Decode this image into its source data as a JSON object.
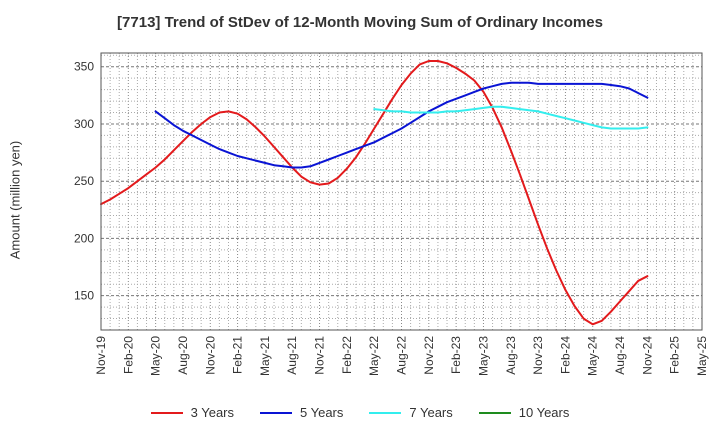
{
  "chart_data": {
    "type": "line",
    "title": "[7713]  Trend of StDev of 12-Month Moving Sum of Ordinary Incomes",
    "xlabel": "",
    "ylabel": "Amount (million yen)",
    "ylim": [
      120,
      362
    ],
    "yticks": [
      150,
      200,
      250,
      300,
      350
    ],
    "grid": true,
    "legend_position": "bottom",
    "x_ticks": [
      "Nov-19",
      "Feb-20",
      "May-20",
      "Aug-20",
      "Nov-20",
      "Feb-21",
      "May-21",
      "Aug-21",
      "Nov-21",
      "Feb-22",
      "May-22",
      "Aug-22",
      "Nov-22",
      "Feb-23",
      "May-23",
      "Aug-23",
      "Nov-23",
      "Feb-24",
      "May-24",
      "Aug-24",
      "Nov-24",
      "Feb-25",
      "May-25"
    ],
    "series": [
      {
        "name": "3 Years",
        "color": "#e31a1c",
        "x": [
          "Nov-19",
          "Dec-19",
          "Jan-20",
          "Feb-20",
          "Mar-20",
          "Apr-20",
          "May-20",
          "Jun-20",
          "Jul-20",
          "Aug-20",
          "Sep-20",
          "Oct-20",
          "Nov-20",
          "Dec-20",
          "Jan-21",
          "Feb-21",
          "Mar-21",
          "Apr-21",
          "May-21",
          "Jun-21",
          "Jul-21",
          "Aug-21",
          "Sep-21",
          "Oct-21",
          "Nov-21",
          "Dec-21",
          "Jan-22",
          "Feb-22",
          "Mar-22",
          "Apr-22",
          "May-22",
          "Jun-22",
          "Jul-22",
          "Aug-22",
          "Sep-22",
          "Oct-22",
          "Nov-22",
          "Dec-22",
          "Jan-23",
          "Feb-23",
          "Mar-23",
          "Apr-23",
          "May-23",
          "Jun-23",
          "Jul-23",
          "Aug-23",
          "Sep-23",
          "Oct-23",
          "Nov-23",
          "Dec-23",
          "Jan-24",
          "Feb-24",
          "Mar-24",
          "Apr-24",
          "May-24",
          "Jun-24",
          "Jul-24",
          "Aug-24",
          "Sep-24",
          "Oct-24",
          "Nov-24"
        ],
        "values": [
          230,
          234,
          239,
          244,
          250,
          256,
          262,
          269,
          277,
          285,
          293,
          300,
          306,
          310,
          311,
          309,
          304,
          297,
          289,
          280,
          271,
          262,
          254,
          249,
          247,
          248,
          253,
          261,
          271,
          283,
          296,
          309,
          322,
          334,
          344,
          352,
          355,
          355,
          353,
          349,
          344,
          338,
          328,
          314,
          297,
          277,
          256,
          234,
          212,
          191,
          172,
          155,
          141,
          130,
          125,
          128,
          136,
          145,
          154,
          163,
          167
        ]
      },
      {
        "name": "5 Years",
        "color": "#0a14d4",
        "x": [
          "May-20",
          "Jun-20",
          "Jul-20",
          "Aug-20",
          "Sep-20",
          "Oct-20",
          "Nov-20",
          "Dec-20",
          "Jan-21",
          "Feb-21",
          "Mar-21",
          "Apr-21",
          "May-21",
          "Jun-21",
          "Jul-21",
          "Aug-21",
          "Sep-21",
          "Oct-21",
          "Nov-21",
          "Dec-21",
          "Jan-22",
          "Feb-22",
          "Mar-22",
          "Apr-22",
          "May-22",
          "Jun-22",
          "Jul-22",
          "Aug-22",
          "Sep-22",
          "Oct-22",
          "Nov-22",
          "Dec-22",
          "Jan-23",
          "Feb-23",
          "Mar-23",
          "Apr-23",
          "May-23",
          "Jun-23",
          "Jul-23",
          "Aug-23",
          "Sep-23",
          "Oct-23",
          "Nov-23",
          "Dec-23",
          "Jan-24",
          "Feb-24",
          "Mar-24",
          "Apr-24",
          "May-24",
          "Jun-24",
          "Jul-24",
          "Aug-24",
          "Sep-24",
          "Oct-24",
          "Nov-24"
        ],
        "values": [
          311,
          305,
          299,
          294,
          290,
          286,
          282,
          278,
          275,
          272,
          270,
          268,
          266,
          264,
          263,
          262,
          262,
          263,
          266,
          269,
          272,
          275,
          278,
          281,
          284,
          288,
          292,
          296,
          301,
          306,
          311,
          315,
          319,
          322,
          325,
          328,
          331,
          333,
          335,
          336,
          336,
          336,
          335,
          335,
          335,
          335,
          335,
          335,
          335,
          335,
          334,
          333,
          331,
          327,
          323
        ]
      },
      {
        "name": "7 Years",
        "color": "#33eeee",
        "x": [
          "May-22",
          "Jun-22",
          "Jul-22",
          "Aug-22",
          "Sep-22",
          "Oct-22",
          "Nov-22",
          "Dec-22",
          "Jan-23",
          "Feb-23",
          "Mar-23",
          "Apr-23",
          "May-23",
          "Jun-23",
          "Jul-23",
          "Aug-23",
          "Sep-23",
          "Oct-23",
          "Nov-23",
          "Dec-23",
          "Jan-24",
          "Feb-24",
          "Mar-24",
          "Apr-24",
          "May-24",
          "Jun-24",
          "Jul-24",
          "Aug-24",
          "Sep-24",
          "Oct-24",
          "Nov-24"
        ],
        "values": [
          313,
          312,
          311,
          311,
          310,
          310,
          310,
          310,
          311,
          311,
          312,
          313,
          314,
          315,
          315,
          314,
          313,
          312,
          311,
          309,
          307,
          305,
          303,
          301,
          299,
          297,
          296,
          296,
          296,
          296,
          297
        ]
      },
      {
        "name": "10 Years",
        "color": "#1e8c1e",
        "x": [],
        "values": []
      }
    ]
  }
}
